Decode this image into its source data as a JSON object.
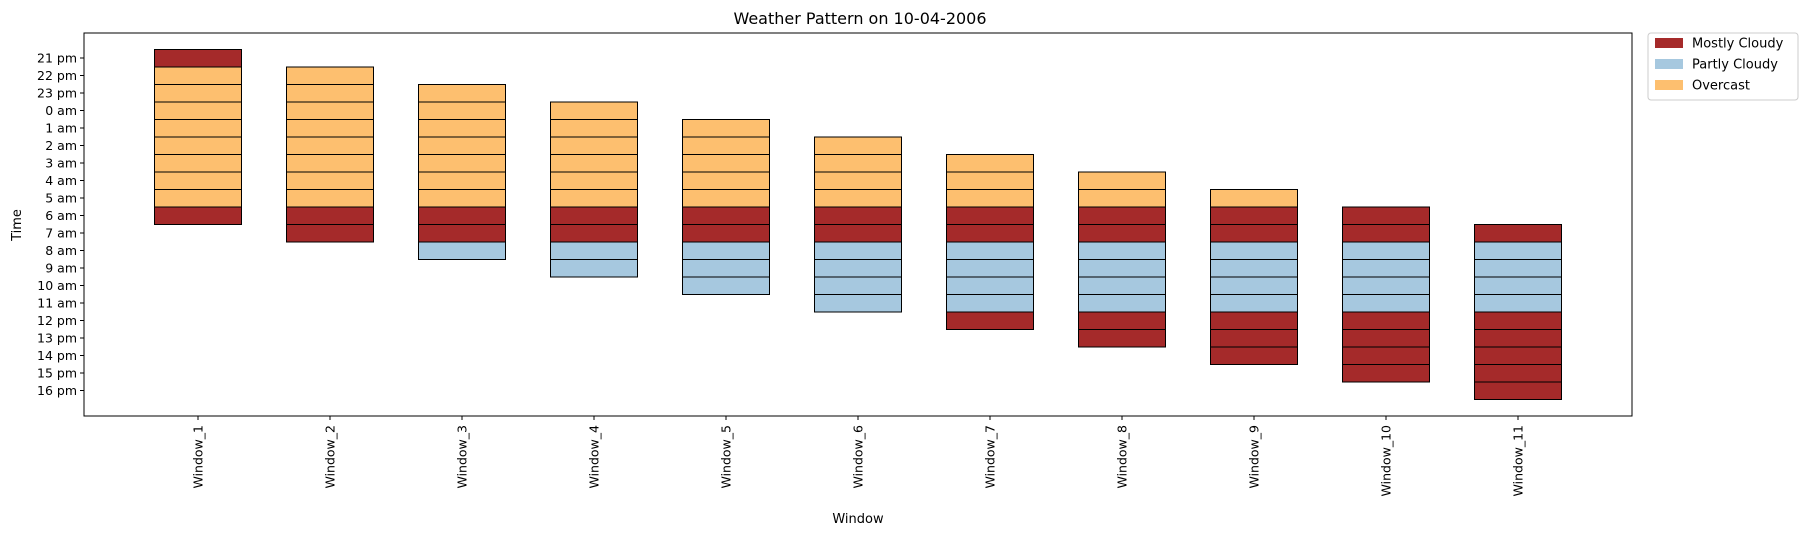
{
  "chart_data": {
    "type": "bar",
    "title": "Weather Pattern on 10-04-2006",
    "xlabel": "Window",
    "ylabel": "Time",
    "y_ticks": [
      "21 pm",
      "22 pm",
      "23 pm",
      "0 am",
      "1 am",
      "2 am",
      "3 am",
      "4 am",
      "5 am",
      "6 am",
      "7 am",
      "8 am",
      "9 am",
      "10 am",
      "11 am",
      "12 pm",
      "13 pm",
      "14 pm",
      "15 pm",
      "16 pm"
    ],
    "categories": [
      "Window_1",
      "Window_2",
      "Window_3",
      "Window_4",
      "Window_5",
      "Window_6",
      "Window_7",
      "Window_8",
      "Window_9",
      "Window_10",
      "Window_11"
    ],
    "legend": {
      "position": "upper-right-outside",
      "entries": [
        {
          "name": "Mostly Cloudy",
          "color": "#a52a2a"
        },
        {
          "name": "Partly Cloudy",
          "color": "#a6c8df"
        },
        {
          "name": "Overcast",
          "color": "#fdbf6f"
        }
      ]
    },
    "windows": [
      {
        "name": "Window_1",
        "cells": [
          "Mostly Cloudy",
          "Overcast",
          "Overcast",
          "Overcast",
          "Overcast",
          "Overcast",
          "Overcast",
          "Overcast",
          "Overcast",
          "Mostly Cloudy"
        ]
      },
      {
        "name": "Window_2",
        "cells": [
          "Overcast",
          "Overcast",
          "Overcast",
          "Overcast",
          "Overcast",
          "Overcast",
          "Overcast",
          "Overcast",
          "Mostly Cloudy",
          "Mostly Cloudy"
        ]
      },
      {
        "name": "Window_3",
        "cells": [
          "Overcast",
          "Overcast",
          "Overcast",
          "Overcast",
          "Overcast",
          "Overcast",
          "Overcast",
          "Mostly Cloudy",
          "Mostly Cloudy",
          "Partly Cloudy"
        ]
      },
      {
        "name": "Window_4",
        "cells": [
          "Overcast",
          "Overcast",
          "Overcast",
          "Overcast",
          "Overcast",
          "Overcast",
          "Mostly Cloudy",
          "Mostly Cloudy",
          "Partly Cloudy",
          "Partly Cloudy"
        ]
      },
      {
        "name": "Window_5",
        "cells": [
          "Overcast",
          "Overcast",
          "Overcast",
          "Overcast",
          "Overcast",
          "Mostly Cloudy",
          "Mostly Cloudy",
          "Partly Cloudy",
          "Partly Cloudy",
          "Partly Cloudy"
        ]
      },
      {
        "name": "Window_6",
        "cells": [
          "Overcast",
          "Overcast",
          "Overcast",
          "Overcast",
          "Mostly Cloudy",
          "Mostly Cloudy",
          "Partly Cloudy",
          "Partly Cloudy",
          "Partly Cloudy",
          "Partly Cloudy"
        ]
      },
      {
        "name": "Window_7",
        "cells": [
          "Overcast",
          "Overcast",
          "Overcast",
          "Mostly Cloudy",
          "Mostly Cloudy",
          "Partly Cloudy",
          "Partly Cloudy",
          "Partly Cloudy",
          "Partly Cloudy",
          "Mostly Cloudy"
        ]
      },
      {
        "name": "Window_8",
        "cells": [
          "Overcast",
          "Overcast",
          "Mostly Cloudy",
          "Mostly Cloudy",
          "Partly Cloudy",
          "Partly Cloudy",
          "Partly Cloudy",
          "Partly Cloudy",
          "Mostly Cloudy",
          "Mostly Cloudy"
        ]
      },
      {
        "name": "Window_9",
        "cells": [
          "Overcast",
          "Mostly Cloudy",
          "Mostly Cloudy",
          "Partly Cloudy",
          "Partly Cloudy",
          "Partly Cloudy",
          "Partly Cloudy",
          "Mostly Cloudy",
          "Mostly Cloudy",
          "Mostly Cloudy"
        ]
      },
      {
        "name": "Window_10",
        "cells": [
          "Mostly Cloudy",
          "Mostly Cloudy",
          "Partly Cloudy",
          "Partly Cloudy",
          "Partly Cloudy",
          "Partly Cloudy",
          "Mostly Cloudy",
          "Mostly Cloudy",
          "Mostly Cloudy",
          "Mostly Cloudy"
        ]
      },
      {
        "name": "Window_11",
        "cells": [
          "Mostly Cloudy",
          "Partly Cloudy",
          "Partly Cloudy",
          "Partly Cloudy",
          "Partly Cloudy",
          "Mostly Cloudy",
          "Mostly Cloudy",
          "Mostly Cloudy",
          "Mostly Cloudy",
          "Mostly Cloudy"
        ]
      }
    ]
  }
}
